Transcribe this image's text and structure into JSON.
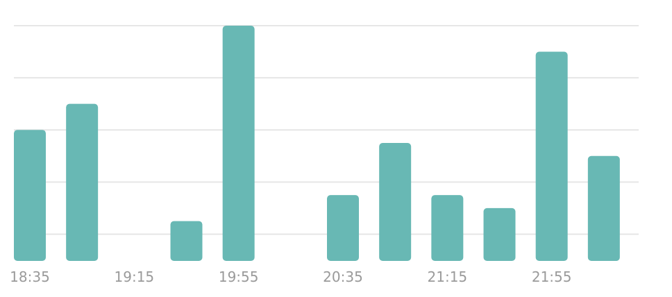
{
  "chart_data": {
    "type": "bar",
    "title": "",
    "xlabel": "",
    "ylabel": "",
    "categories": [
      "18:35",
      "",
      "19:15",
      "",
      "19:55",
      "",
      "20:35",
      "",
      "21:15",
      "",
      "21:55",
      ""
    ],
    "values": [
      10,
      12,
      0,
      3,
      18,
      0,
      5,
      9,
      5,
      4,
      16,
      8
    ],
    "ylim": [
      0,
      18
    ],
    "gridlines": [
      2,
      6,
      10,
      14,
      18
    ],
    "grid": true,
    "y_tick_labels_shown": false,
    "legend": "none",
    "colors": {
      "bar": "#68b8b4",
      "grid": "#e6e6e6",
      "tick_text": "#9a9a9a"
    }
  }
}
